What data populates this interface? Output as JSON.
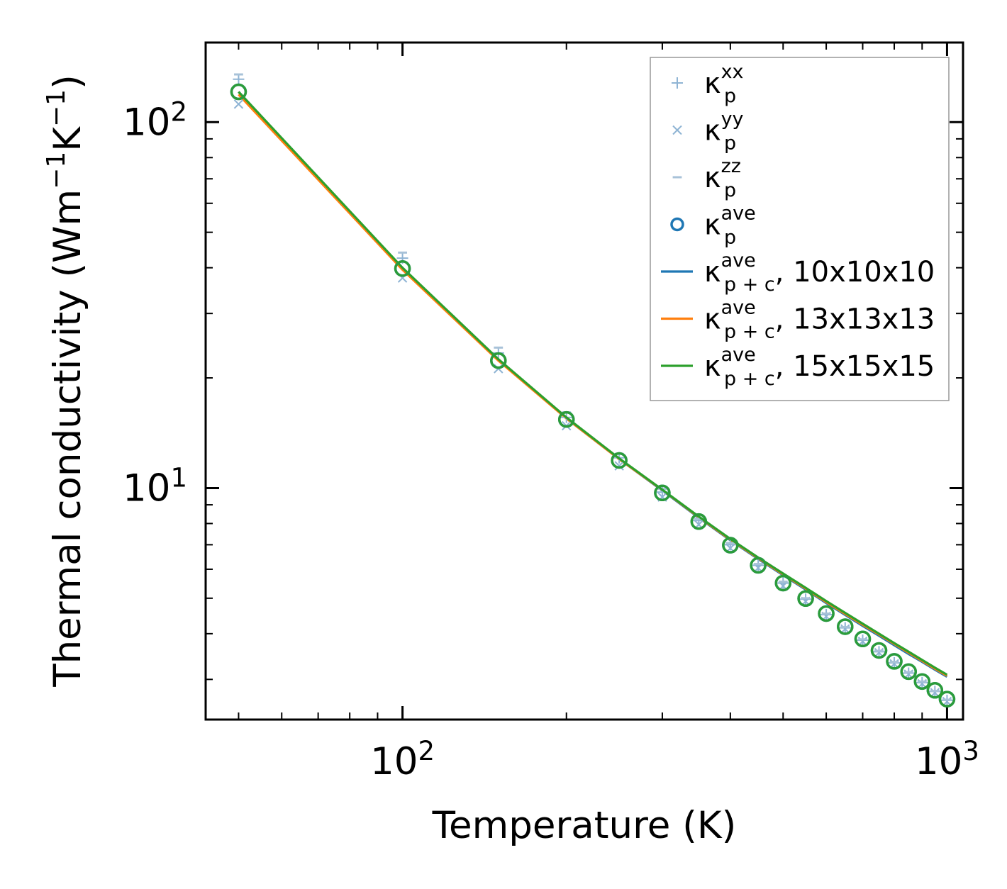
{
  "chart_data": {
    "type": "line",
    "title": "",
    "xlabel": "Temperature (K)",
    "ylabel": {
      "base": "Thermal conductivity (Wm",
      "sup1": "−1",
      "mid": "K",
      "sup2": "−1",
      "end": ")"
    },
    "xscale": "log",
    "yscale": "log",
    "xlim": [
      43.5,
      1070
    ],
    "ylim": [
      2.33,
      165
    ],
    "x_major_ticks": [
      {
        "value": 100,
        "base": "10",
        "exp": "2"
      },
      {
        "value": 1000,
        "base": "10",
        "exp": "3"
      }
    ],
    "y_major_ticks": [
      {
        "value": 10,
        "base": "10",
        "exp": "1"
      },
      {
        "value": 100,
        "base": "10",
        "exp": "2"
      }
    ],
    "x_minor_ticks": [
      50,
      60,
      70,
      80,
      90,
      200,
      300,
      400,
      500,
      600,
      700,
      800,
      900
    ],
    "y_minor_ticks": [
      3,
      4,
      5,
      6,
      7,
      8,
      9,
      20,
      30,
      40,
      50,
      60,
      70,
      80,
      90
    ],
    "colors": {
      "xx": "#8fb4d4",
      "yy": "#8fb4d4",
      "zz": "#a8c2d8",
      "ave": "#1f77b4",
      "c10": "#1f77b4",
      "c13": "#ff7f0e",
      "c15": "#2ca02c"
    },
    "legend_position": "upper right",
    "legend": [
      {
        "key": "xx",
        "sym": "κ",
        "sup": "xx",
        "sub": "p",
        "suffix": ""
      },
      {
        "key": "yy",
        "sym": "κ",
        "sup": "yy",
        "sub": "p",
        "suffix": ""
      },
      {
        "key": "zz",
        "sym": "κ",
        "sup": "zz",
        "sub": "p",
        "suffix": ""
      },
      {
        "key": "ave",
        "sym": "κ",
        "sup": "ave",
        "sub": "p",
        "suffix": ""
      },
      {
        "key": "c10",
        "sym": "κ",
        "sup": "ave",
        "sub": "p + c",
        "suffix": ", 10x10x10"
      },
      {
        "key": "c13",
        "sym": "κ",
        "sup": "ave",
        "sub": "p + c",
        "suffix": ", 13x13x13"
      },
      {
        "key": "c15",
        "sym": "κ",
        "sup": "ave",
        "sub": "p + c",
        "suffix": ", 15x15x15"
      }
    ],
    "x": [
      50,
      100,
      150,
      200,
      250,
      300,
      350,
      400,
      450,
      500,
      550,
      600,
      650,
      700,
      750,
      800,
      850,
      900,
      950,
      1000
    ],
    "series": [
      {
        "name": "κ_p^xx",
        "key": "xx",
        "marker": "plus",
        "values": [
          131,
          42.5,
          23.4,
          15.6,
          12.1,
          9.75,
          8.15,
          7.0,
          6.15,
          5.5,
          4.97,
          4.51,
          4.15,
          3.84,
          3.57,
          3.33,
          3.12,
          2.94,
          2.78,
          2.63
        ]
      },
      {
        "name": "κ_p^yy",
        "key": "yy",
        "marker": "cross",
        "values": [
          112,
          37.5,
          21.2,
          14.8,
          11.5,
          9.45,
          7.95,
          6.85,
          6.05,
          5.4,
          4.9,
          4.46,
          4.12,
          3.81,
          3.55,
          3.31,
          3.1,
          2.92,
          2.76,
          2.61
        ]
      },
      {
        "name": "κ_p^zz",
        "key": "zz",
        "marker": "dash",
        "values": [
          135,
          44,
          24.2,
          16.1,
          12.4,
          9.95,
          8.25,
          7.08,
          6.2,
          5.55,
          5.0,
          4.54,
          4.17,
          3.86,
          3.59,
          3.35,
          3.14,
          2.96,
          2.79,
          2.64
        ]
      },
      {
        "name": "κ_p^ave",
        "key": "ave",
        "marker": "circle",
        "values": [
          121,
          39.8,
          22.3,
          15.4,
          11.9,
          9.7,
          8.1,
          6.98,
          6.15,
          5.5,
          4.99,
          4.54,
          4.18,
          3.87,
          3.6,
          3.36,
          3.15,
          2.96,
          2.8,
          2.65
        ]
      },
      {
        "name": "κ_p+c^ave, 10x10x10",
        "key": "c10",
        "marker": "line",
        "values": [
          121,
          39.8,
          22.4,
          15.5,
          12.0,
          9.85,
          8.3,
          7.2,
          6.4,
          5.78,
          5.28,
          4.85,
          4.5,
          4.2,
          3.95,
          3.72,
          3.52,
          3.35,
          3.19,
          3.05
        ]
      },
      {
        "name": "κ_p+c^ave, 13x13x13",
        "key": "c13",
        "marker": "line",
        "values": [
          119,
          39.5,
          22.3,
          15.5,
          12.0,
          9.88,
          8.33,
          7.23,
          6.43,
          5.81,
          5.31,
          4.88,
          4.53,
          4.23,
          3.98,
          3.75,
          3.55,
          3.37,
          3.21,
          3.07
        ]
      },
      {
        "name": "κ_p+c^ave, 15x15x15",
        "key": "c15",
        "marker": "line",
        "values": [
          121,
          40.0,
          22.5,
          15.6,
          12.05,
          9.9,
          8.36,
          7.26,
          6.46,
          5.84,
          5.34,
          4.91,
          4.56,
          4.26,
          4.0,
          3.77,
          3.57,
          3.39,
          3.23,
          3.09
        ]
      }
    ]
  }
}
